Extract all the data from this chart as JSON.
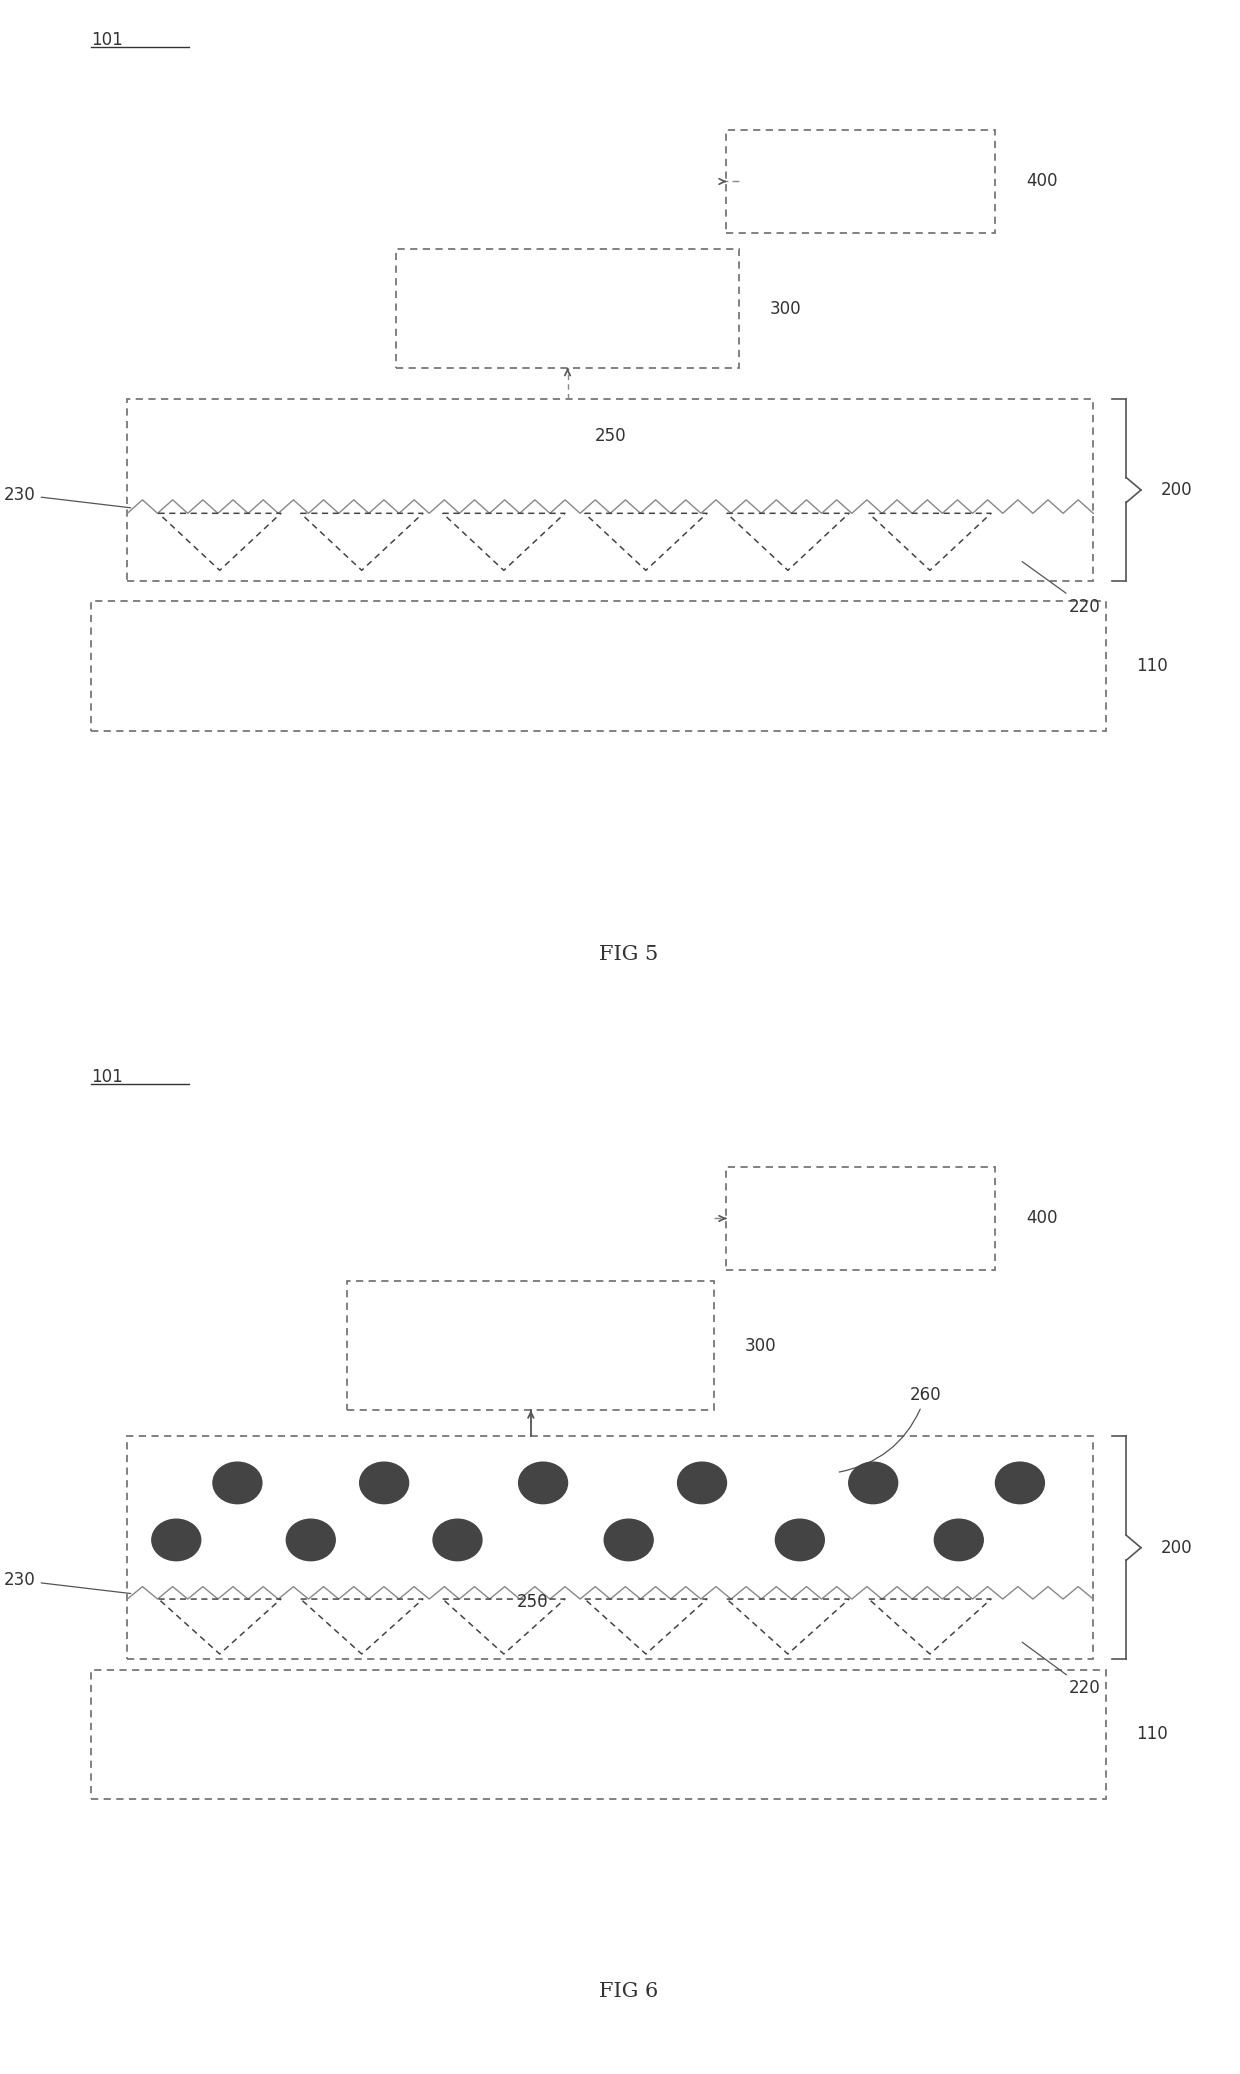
{
  "bg_color": "#ffffff",
  "line_color": "#333333",
  "dash_color": "#777777",
  "fig5_title": "FIG 5",
  "fig6_title": "FIG 6",
  "label_101": "101",
  "label_400": "400",
  "label_300": "300",
  "label_250": "250",
  "label_230": "230",
  "label_220": "220",
  "label_200": "200",
  "label_110": "110",
  "label_260": "260"
}
